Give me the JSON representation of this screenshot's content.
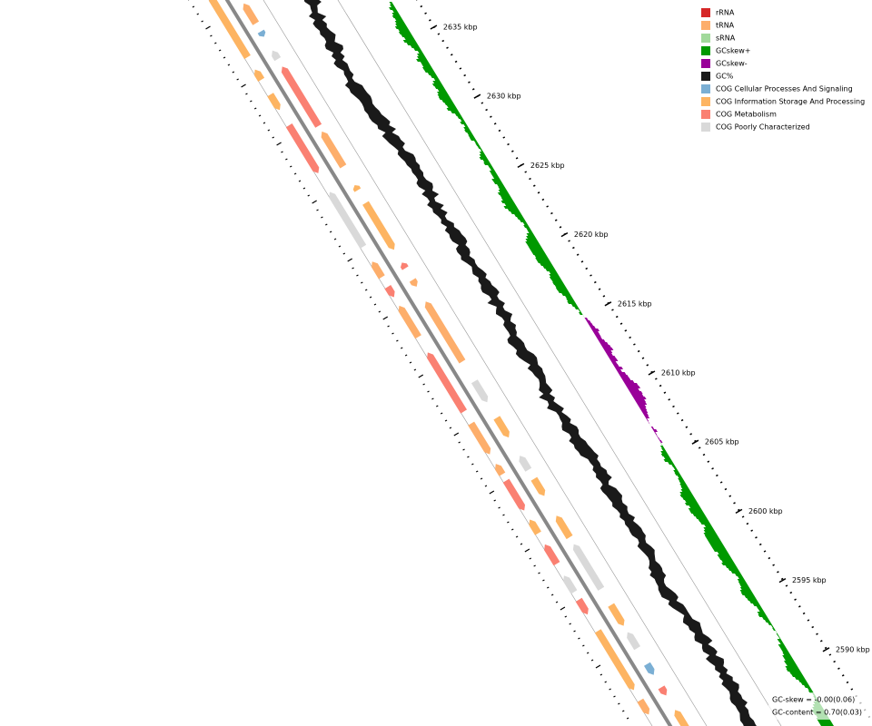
{
  "legend": {
    "items": [
      {
        "label": "rRNA",
        "color": "#d62728"
      },
      {
        "label": "tRNA",
        "color": "#fdae6b"
      },
      {
        "label": "sRNA",
        "color": "#a1d99b"
      },
      {
        "label": "GCskew+",
        "color": "#009900"
      },
      {
        "label": "GCskew-",
        "color": "#990099"
      },
      {
        "label": "GC%",
        "color": "#1a1a1a"
      },
      {
        "label": "COG Cellular Processes And Signaling",
        "color": "#7bafd4"
      },
      {
        "label": "COG Information Storage And Processing",
        "color": "#fdb462"
      },
      {
        "label": "COG Metabolism",
        "color": "#fa8072"
      },
      {
        "label": "COG Poorly Characterized",
        "color": "#d9d9d9"
      }
    ]
  },
  "scale_labels": [
    "2635 kbp",
    "2630 kbp",
    "2625 kbp",
    "2620 kbp",
    "2615 kbp",
    "2610 kbp",
    "2605 kbp",
    "2600 kbp",
    "2595 kbp",
    "2590 kbp"
  ],
  "stats": [
    "GC-skew = -0.00(0.06)",
    "GC-content = 0.70(0.03)"
  ]
}
